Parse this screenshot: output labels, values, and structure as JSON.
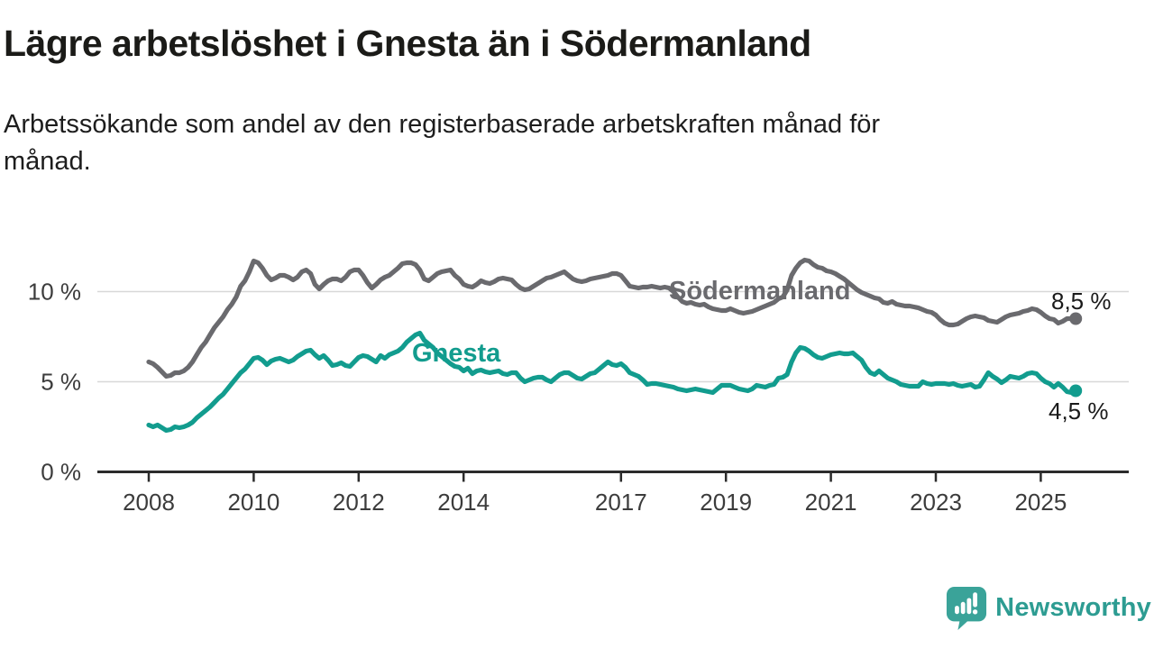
{
  "header": {
    "title": "Lägre arbetslöshet i Gnesta än i Södermanland",
    "subtitle_lines": [
      "Arbetssökande som andel av den registerbaserade arbetskraften månad för",
      "månad."
    ]
  },
  "footer": {
    "brand": "Newsworthy",
    "logo_icon": "newsworthy-bubble-barchart-icon"
  },
  "colors": {
    "gnesta": "#129c8e",
    "sodermanland": "#6a6a6e",
    "grid": "#d8d8d8",
    "axis": "#2b2b2b",
    "tick_label": "#3c3c3c",
    "value_label": "#1a1a1a",
    "brand_teal": "#3aa399",
    "title_text": "#1b1b18"
  },
  "chart_data": {
    "type": "line",
    "title": "Lägre arbetslöshet i Gnesta än i Södermanland",
    "subtitle": "Arbetssökande som andel av den registerbaserade arbetskraften månad för månad.",
    "unit": "%",
    "frequency": "monthly",
    "x_start": "2008-01",
    "x_end": "2025-09",
    "xlabel": "",
    "ylabel": "",
    "ylim": [
      0,
      12.5
    ],
    "grid": "horizontal",
    "legend_position": "inline-labels",
    "x_ticks": [
      2008,
      2010,
      2012,
      2014,
      2017,
      2019,
      2021,
      2023,
      2025
    ],
    "y_ticks": [
      {
        "value": 0,
        "label": "0 %"
      },
      {
        "value": 5,
        "label": "5 %"
      },
      {
        "value": 10,
        "label": "10 %"
      }
    ],
    "series": [
      {
        "id": "sodermanland",
        "name": "Södermanland",
        "color": "#6a6a6e",
        "end_label": "8,5 %",
        "end_value": 8.5,
        "values": [
          6.1,
          6.0,
          5.8,
          5.55,
          5.3,
          5.35,
          5.5,
          5.5,
          5.6,
          5.8,
          6.1,
          6.5,
          6.9,
          7.2,
          7.6,
          8.0,
          8.3,
          8.6,
          9.0,
          9.3,
          9.7,
          10.3,
          10.6,
          11.1,
          11.7,
          11.6,
          11.3,
          10.9,
          10.65,
          10.75,
          10.9,
          10.9,
          10.8,
          10.65,
          10.8,
          11.1,
          11.2,
          11.0,
          10.4,
          10.15,
          10.4,
          10.6,
          10.7,
          10.7,
          10.6,
          10.8,
          11.1,
          11.2,
          11.2,
          10.9,
          10.5,
          10.2,
          10.4,
          10.65,
          10.8,
          10.9,
          11.1,
          11.3,
          11.55,
          11.6,
          11.6,
          11.5,
          11.2,
          10.7,
          10.6,
          10.8,
          11.0,
          11.1,
          11.15,
          11.2,
          10.9,
          10.7,
          10.4,
          10.3,
          10.25,
          10.4,
          10.6,
          10.5,
          10.45,
          10.55,
          10.7,
          10.75,
          10.7,
          10.65,
          10.4,
          10.2,
          10.1,
          10.15,
          10.3,
          10.45,
          10.6,
          10.75,
          10.8,
          10.9,
          11.0,
          11.1,
          10.9,
          10.7,
          10.6,
          10.55,
          10.6,
          10.7,
          10.75,
          10.8,
          10.85,
          10.9,
          11.0,
          11.0,
          10.9,
          10.6,
          10.3,
          10.25,
          10.2,
          10.25,
          10.25,
          10.3,
          10.25,
          10.2,
          10.25,
          10.2,
          10.0,
          9.7,
          9.45,
          9.35,
          9.4,
          9.3,
          9.25,
          9.3,
          9.15,
          9.05,
          9.0,
          8.95,
          8.95,
          9.05,
          8.95,
          8.85,
          8.8,
          8.85,
          8.9,
          9.0,
          9.1,
          9.2,
          9.3,
          9.4,
          9.6,
          9.7,
          10.1,
          10.9,
          11.3,
          11.6,
          11.75,
          11.7,
          11.5,
          11.35,
          11.3,
          11.15,
          11.1,
          11.0,
          10.85,
          10.7,
          10.5,
          10.3,
          10.1,
          9.95,
          9.85,
          9.75,
          9.65,
          9.6,
          9.4,
          9.35,
          9.45,
          9.3,
          9.25,
          9.2,
          9.2,
          9.15,
          9.1,
          9.0,
          8.9,
          8.85,
          8.7,
          8.45,
          8.25,
          8.15,
          8.15,
          8.2,
          8.35,
          8.5,
          8.6,
          8.65,
          8.6,
          8.55,
          8.4,
          8.35,
          8.3,
          8.45,
          8.6,
          8.7,
          8.75,
          8.8,
          8.9,
          8.95,
          9.05,
          9.0,
          8.85,
          8.65,
          8.5,
          8.45,
          8.25,
          8.35,
          8.5,
          8.5,
          8.5
        ]
      },
      {
        "id": "gnesta",
        "name": "Gnesta",
        "color": "#129c8e",
        "end_label": "4,5 %",
        "end_value": 4.5,
        "values": [
          2.6,
          2.5,
          2.6,
          2.45,
          2.3,
          2.35,
          2.5,
          2.45,
          2.5,
          2.6,
          2.75,
          3.0,
          3.2,
          3.4,
          3.6,
          3.85,
          4.1,
          4.3,
          4.6,
          4.9,
          5.2,
          5.5,
          5.7,
          6.0,
          6.3,
          6.35,
          6.2,
          5.95,
          6.15,
          6.25,
          6.3,
          6.2,
          6.1,
          6.2,
          6.4,
          6.55,
          6.7,
          6.75,
          6.5,
          6.3,
          6.45,
          6.2,
          5.9,
          5.95,
          6.05,
          5.9,
          5.85,
          6.1,
          6.35,
          6.45,
          6.4,
          6.25,
          6.1,
          6.45,
          6.3,
          6.5,
          6.6,
          6.7,
          6.9,
          7.2,
          7.4,
          7.6,
          7.7,
          7.3,
          7.1,
          6.9,
          6.6,
          6.4,
          6.2,
          6.0,
          5.85,
          5.8,
          5.6,
          5.75,
          5.45,
          5.6,
          5.65,
          5.55,
          5.5,
          5.55,
          5.6,
          5.45,
          5.4,
          5.5,
          5.5,
          5.2,
          5.0,
          5.1,
          5.2,
          5.25,
          5.25,
          5.1,
          5.0,
          5.2,
          5.4,
          5.5,
          5.5,
          5.35,
          5.2,
          5.15,
          5.3,
          5.45,
          5.5,
          5.7,
          5.9,
          6.1,
          5.95,
          5.9,
          6.0,
          5.8,
          5.5,
          5.4,
          5.3,
          5.1,
          4.85,
          4.9,
          4.9,
          4.85,
          4.8,
          4.75,
          4.7,
          4.6,
          4.55,
          4.5,
          4.55,
          4.6,
          4.55,
          4.5,
          4.45,
          4.4,
          4.6,
          4.8,
          4.8,
          4.8,
          4.7,
          4.6,
          4.55,
          4.5,
          4.6,
          4.8,
          4.75,
          4.7,
          4.8,
          4.85,
          5.2,
          5.25,
          5.4,
          6.1,
          6.6,
          6.9,
          6.85,
          6.7,
          6.5,
          6.35,
          6.3,
          6.4,
          6.5,
          6.55,
          6.6,
          6.55,
          6.55,
          6.6,
          6.4,
          6.2,
          5.8,
          5.5,
          5.4,
          5.6,
          5.4,
          5.2,
          5.1,
          5.0,
          4.85,
          4.8,
          4.75,
          4.75,
          4.75,
          5.0,
          4.9,
          4.85,
          4.9,
          4.9,
          4.9,
          4.85,
          4.9,
          4.8,
          4.75,
          4.8,
          4.85,
          4.7,
          4.75,
          5.1,
          5.5,
          5.3,
          5.15,
          4.95,
          5.1,
          5.3,
          5.25,
          5.2,
          5.3,
          5.45,
          5.5,
          5.45,
          5.2,
          5.0,
          4.9,
          4.7,
          4.9,
          4.7,
          4.45,
          4.4,
          4.5
        ]
      }
    ]
  }
}
